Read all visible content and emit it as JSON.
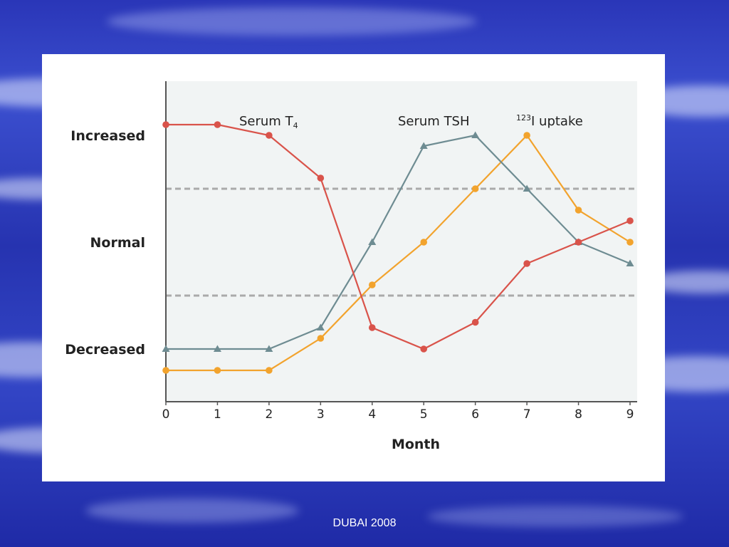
{
  "slide": {
    "footer": "DUBAI 2008"
  },
  "colors": {
    "background": "#2b39bd",
    "plot_bg": "#f1f4f4",
    "series_t4": "#d9534a",
    "series_tsh": "#6e8c92",
    "series_i123": "#f2a32d",
    "dashed": "#aaaaaa"
  },
  "chart_data": {
    "type": "line",
    "xlabel": "Month",
    "ylabel": "",
    "x": [
      0,
      1,
      2,
      3,
      4,
      5,
      6,
      7,
      8,
      9
    ],
    "xlim": [
      0,
      9
    ],
    "y_category_labels": [
      "Increased",
      "Normal",
      "Decreased"
    ],
    "y_category_values": [
      1,
      0,
      -1
    ],
    "ylim": [
      -1.5,
      1.5
    ],
    "normal_range_bounds": [
      0.5,
      -0.5
    ],
    "grid": false,
    "series": [
      {
        "name": "Serum T",
        "name_subscript": "4",
        "marker": "circle",
        "values": [
          1.1,
          1.1,
          1.0,
          0.6,
          -0.8,
          -1.0,
          -0.75,
          -0.2,
          0.0,
          0.2
        ]
      },
      {
        "name": "Serum TSH",
        "marker": "triangle",
        "values": [
          -1.0,
          -1.0,
          -1.0,
          -0.8,
          0.0,
          0.9,
          1.0,
          0.5,
          0.0,
          -0.2
        ]
      },
      {
        "name": "I uptake",
        "name_superscript": "123",
        "marker": "circle",
        "values": [
          -1.2,
          -1.2,
          -1.2,
          -0.9,
          -0.4,
          0.0,
          0.5,
          1.0,
          0.3,
          0.0
        ]
      }
    ]
  }
}
